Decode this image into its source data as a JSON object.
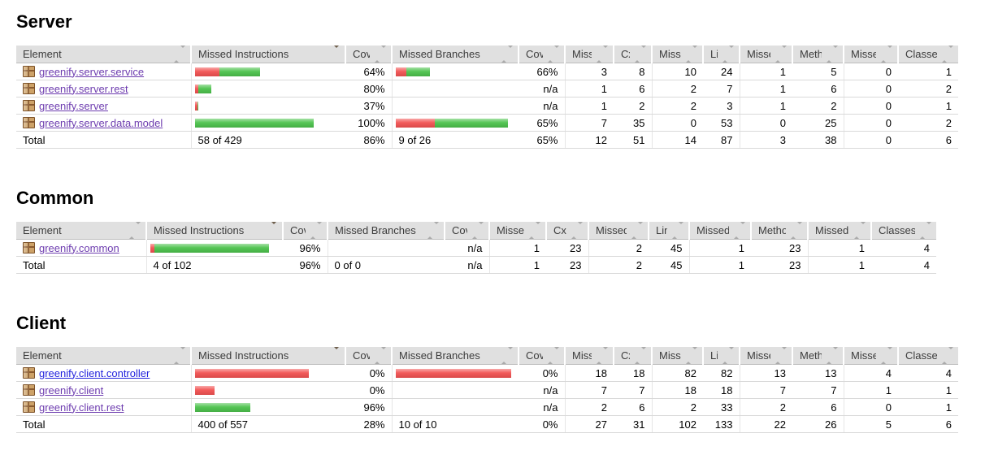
{
  "colors": {
    "bar_red": "#f25252",
    "bar_green": "#4cc24c",
    "link": "#2222dd",
    "link_visited": "#6d3caf",
    "header_bg": "#e0e0e0"
  },
  "report": {
    "sections": [
      {
        "title": "Server",
        "columns": [
          "Element",
          "Missed Instructions",
          "Cov.",
          "Missed Branches",
          "Cov.",
          "Missed",
          "Cxty",
          "Missed",
          "Lines",
          "Missed",
          "Methods",
          "Missed",
          "Classes"
        ],
        "sort": {
          "active_column_index": 1,
          "direction": "desc"
        },
        "rows": [
          {
            "element": "greenify.server.service",
            "visited": true,
            "instr_bar": {
              "red": 30,
              "green": 50
            },
            "instr_cov": "64%",
            "branch_bar": {
              "red": 13,
              "green": 29
            },
            "branch_cov": "66%",
            "missed_cxty": "3",
            "cxty": "8",
            "missed_lines": "10",
            "lines": "24",
            "missed_methods": "1",
            "methods": "5",
            "missed_classes": "0",
            "classes": "1"
          },
          {
            "element": "greenify.server.rest",
            "visited": true,
            "instr_bar": {
              "red": 4,
              "green": 16
            },
            "instr_cov": "80%",
            "branch_bar": null,
            "branch_cov": "n/a",
            "missed_cxty": "1",
            "cxty": "6",
            "missed_lines": "2",
            "lines": "7",
            "missed_methods": "1",
            "methods": "6",
            "missed_classes": "0",
            "classes": "2"
          },
          {
            "element": "greenify.server",
            "visited": true,
            "instr_bar": {
              "red": 3,
              "green": 1
            },
            "instr_cov": "37%",
            "branch_bar": null,
            "branch_cov": "n/a",
            "missed_cxty": "1",
            "cxty": "2",
            "missed_lines": "2",
            "lines": "3",
            "missed_methods": "1",
            "methods": "2",
            "missed_classes": "0",
            "classes": "1"
          },
          {
            "element": "greenify.server.data.model",
            "visited": true,
            "instr_bar": {
              "red": 0,
              "green": 146
            },
            "instr_cov": "100%",
            "branch_bar": {
              "red": 48,
              "green": 90
            },
            "branch_cov": "65%",
            "missed_cxty": "7",
            "cxty": "35",
            "missed_lines": "0",
            "lines": "53",
            "missed_methods": "0",
            "methods": "25",
            "missed_classes": "0",
            "classes": "2"
          }
        ],
        "total": {
          "label": "Total",
          "instr": "58 of 429",
          "instr_cov": "86%",
          "branch": "9 of 26",
          "branch_cov": "65%",
          "missed_cxty": "12",
          "cxty": "51",
          "missed_lines": "14",
          "lines": "87",
          "missed_methods": "3",
          "methods": "38",
          "missed_classes": "0",
          "classes": "6"
        }
      },
      {
        "title": "Common",
        "columns": [
          "Element",
          "Missed Instructions",
          "Cov.",
          "Missed Branches",
          "Cov.",
          "Missed",
          "Cxty",
          "Missed",
          "Lines",
          "Missed",
          "Methods",
          "Missed",
          "Classes"
        ],
        "sort": {
          "active_column_index": 1,
          "direction": "desc"
        },
        "rows": [
          {
            "element": "greenify.common",
            "visited": true,
            "instr_bar": {
              "red": 5,
              "green": 141
            },
            "instr_cov": "96%",
            "branch_bar": null,
            "branch_cov": "n/a",
            "missed_cxty": "1",
            "cxty": "23",
            "missed_lines": "2",
            "lines": "45",
            "missed_methods": "1",
            "methods": "23",
            "missed_classes": "1",
            "classes": "4"
          }
        ],
        "total": {
          "label": "Total",
          "instr": "4 of 102",
          "instr_cov": "96%",
          "branch": "0 of 0",
          "branch_cov": "n/a",
          "missed_cxty": "1",
          "cxty": "23",
          "missed_lines": "2",
          "lines": "45",
          "missed_methods": "1",
          "methods": "23",
          "missed_classes": "1",
          "classes": "4"
        }
      },
      {
        "title": "Client",
        "columns": [
          "Element",
          "Missed Instructions",
          "Cov.",
          "Missed Branches",
          "Cov.",
          "Missed",
          "Cxty",
          "Missed",
          "Lines",
          "Missed",
          "Methods",
          "Missed",
          "Classes"
        ],
        "sort": {
          "active_column_index": 1,
          "direction": "desc"
        },
        "rows": [
          {
            "element": "greenify.client.controller",
            "visited": false,
            "instr_bar": {
              "red": 140,
              "green": 0
            },
            "instr_cov": "0%",
            "branch_bar": {
              "red": 142,
              "green": 0
            },
            "branch_cov": "0%",
            "missed_cxty": "18",
            "cxty": "18",
            "missed_lines": "82",
            "lines": "82",
            "missed_methods": "13",
            "methods": "13",
            "missed_classes": "4",
            "classes": "4"
          },
          {
            "element": "greenify.client",
            "visited": true,
            "instr_bar": {
              "red": 24,
              "green": 0
            },
            "instr_cov": "0%",
            "branch_bar": null,
            "branch_cov": "n/a",
            "missed_cxty": "7",
            "cxty": "7",
            "missed_lines": "18",
            "lines": "18",
            "missed_methods": "7",
            "methods": "7",
            "missed_classes": "1",
            "classes": "1"
          },
          {
            "element": "greenify.client.rest",
            "visited": true,
            "instr_bar": {
              "red": 0,
              "green": 68
            },
            "instr_cov": "96%",
            "branch_bar": null,
            "branch_cov": "n/a",
            "missed_cxty": "2",
            "cxty": "6",
            "missed_lines": "2",
            "lines": "33",
            "missed_methods": "2",
            "methods": "6",
            "missed_classes": "0",
            "classes": "1"
          }
        ],
        "total": {
          "label": "Total",
          "instr": "400 of 557",
          "instr_cov": "28%",
          "branch": "10 of 10",
          "branch_cov": "0%",
          "missed_cxty": "27",
          "cxty": "31",
          "missed_lines": "102",
          "lines": "133",
          "missed_methods": "22",
          "methods": "26",
          "missed_classes": "5",
          "classes": "6"
        }
      }
    ]
  }
}
